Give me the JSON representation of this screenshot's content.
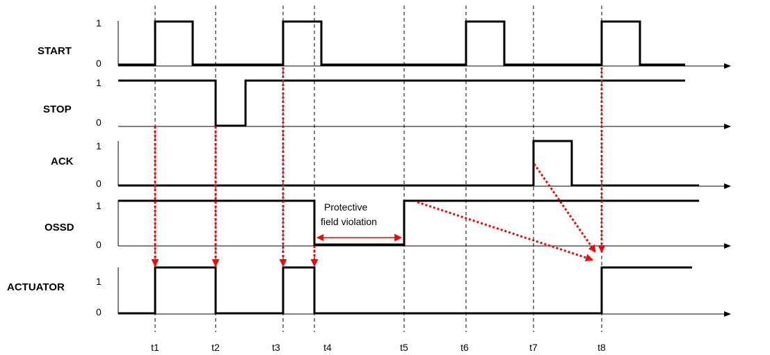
{
  "signals": [
    {
      "name": "START",
      "high_label": "1",
      "low_label": "0"
    },
    {
      "name": "STOP",
      "high_label": "1",
      "low_label": "0"
    },
    {
      "name": "ACK",
      "high_label": "1",
      "low_label": "0"
    },
    {
      "name": "OSSD",
      "high_label": "1",
      "low_label": "0"
    },
    {
      "name": "ACTUATOR",
      "high_label": "1",
      "low_label": "0"
    }
  ],
  "times": [
    "t1",
    "t2",
    "t3",
    "t4",
    "t5",
    "t6",
    "t7",
    "t8"
  ],
  "annotation": {
    "line1": "Protective",
    "line2": "field violation"
  },
  "colors": {
    "wave": "#000000",
    "causal_arrow": "#ff0000"
  }
}
